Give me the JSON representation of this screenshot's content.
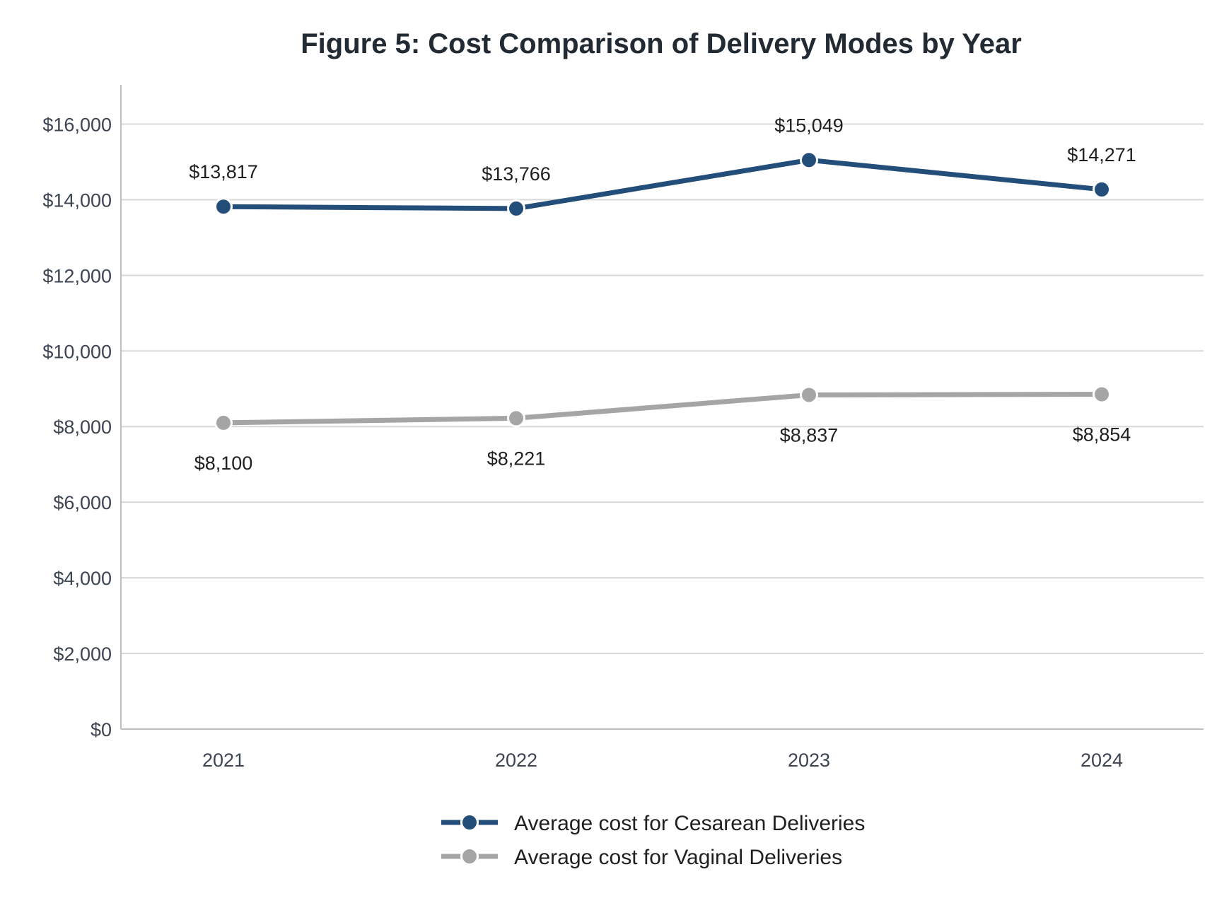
{
  "chart_data": {
    "type": "line",
    "title": "Figure 5: Cost Comparison of Delivery Modes by Year",
    "xlabel": "",
    "ylabel": "",
    "categories": [
      "2021",
      "2022",
      "2023",
      "2024"
    ],
    "ylim": [
      0,
      17000
    ],
    "yticks": [
      0,
      2000,
      4000,
      6000,
      8000,
      10000,
      12000,
      14000,
      16000
    ],
    "ytick_labels": [
      "$0",
      "$2,000",
      "$4,000",
      "$6,000",
      "$8,000",
      "$10,000",
      "$12,000",
      "$14,000",
      "$16,000"
    ],
    "grid": "horizontal",
    "legend_position": "bottom-center",
    "series": [
      {
        "name": "Average cost for Cesarean Deliveries",
        "color": "#234e7a",
        "values": [
          13817,
          13766,
          15049,
          14271
        ],
        "labels": [
          "$13,817",
          "$13,766",
          "$15,049",
          "$14,271"
        ],
        "label_position": "above"
      },
      {
        "name": "Average cost for Vaginal Deliveries",
        "color": "#a5a5a5",
        "values": [
          8100,
          8221,
          8837,
          8854
        ],
        "labels": [
          "$8,100",
          "$8,221",
          "$8,837",
          "$8,854"
        ],
        "label_position": "below"
      }
    ]
  }
}
